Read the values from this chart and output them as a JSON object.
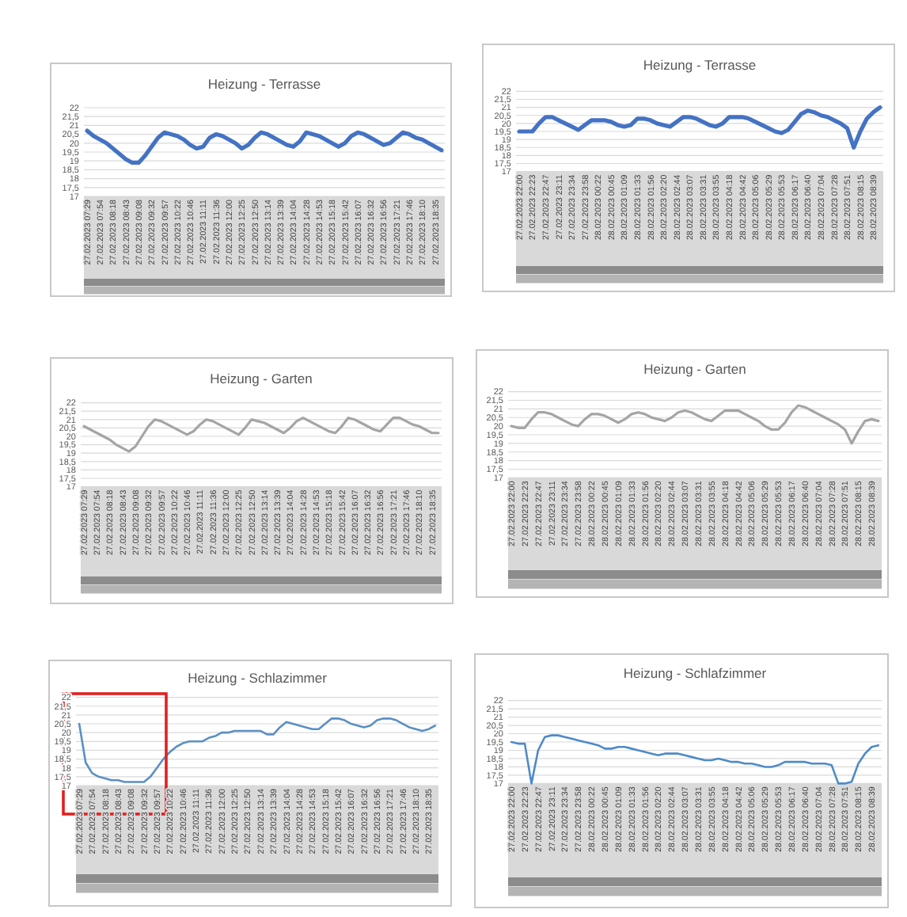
{
  "chart_data": [
    {
      "type": "line",
      "title": "Heizung - Terrasse",
      "categories": [
        "27.02.2023 07:29",
        null,
        "27.02.2023 07:54",
        null,
        "27.02.2023 08:18",
        null,
        "27.02.2023 08:43",
        null,
        "27.02.2023 09:08",
        null,
        "27.02.2023 09:32",
        null,
        "27.02.2023 09:57",
        null,
        "27.02.2023 10:22",
        null,
        "27.02.2023 10:46",
        null,
        "27.02.2023 11:11",
        null,
        "27.02.2023 11:36",
        null,
        "27.02.2023 12:00",
        null,
        "27.02.2023 12:25",
        null,
        "27.02.2023 12:50",
        null,
        "27.02.2023 13:14",
        null,
        "27.02.2023 13:39",
        null,
        "27.02.2023 14:04",
        null,
        "27.02.2023 14:28",
        null,
        "27.02.2023 14:53",
        null,
        "27.02.2023 15:18",
        null,
        "27.02.2023 15:42",
        null,
        "27.02.2023 16:07",
        null,
        "27.02.2023 16:32",
        null,
        "27.02.2023 16:56",
        null,
        "27.02.2023 17:21",
        null,
        "27.02.2023 17:46",
        null,
        "27.02.2023 18:10",
        null,
        "27.02.2023 18:35",
        null
      ],
      "series": [
        {
          "color": "#4472c4",
          "values": [
            20.7,
            20.4,
            20.2,
            20.0,
            19.7,
            19.4,
            19.1,
            18.9,
            18.9,
            19.3,
            19.8,
            20.3,
            20.6,
            20.5,
            20.4,
            20.2,
            19.9,
            19.7,
            19.8,
            20.3,
            20.5,
            20.4,
            20.2,
            20.0,
            19.7,
            19.9,
            20.3,
            20.6,
            20.5,
            20.3,
            20.1,
            19.9,
            19.8,
            20.1,
            20.6,
            20.5,
            20.4,
            20.2,
            20.0,
            19.8,
            20.0,
            20.4,
            20.6,
            20.5,
            20.3,
            20.1,
            19.9,
            20.0,
            20.3,
            20.6,
            20.5,
            20.3,
            20.2,
            20.0,
            19.8,
            19.6
          ]
        }
      ],
      "ylim": [
        17,
        22
      ],
      "yticks": [
        17,
        {
          "value": 17.5,
          "label": "17,5"
        },
        18,
        {
          "value": 18.5,
          "label": "18,5"
        },
        19,
        {
          "value": 19.5,
          "label": "19,5"
        },
        20,
        {
          "value": 20.5,
          "label": "20,5"
        },
        21,
        {
          "value": 21.5,
          "label": "21,5"
        },
        22
      ],
      "grid": "y"
    },
    {
      "type": "line",
      "title": "Heizung - Terrasse",
      "categories": [
        "27.02.2023 22:00",
        null,
        "27.02.2023 22:23",
        null,
        "27.02.2023 22:47",
        null,
        "27.02.2023 23:11",
        null,
        "27.02.2023 23:34",
        null,
        "27.02.2023 23:58",
        null,
        "28.02.2023 00:22",
        null,
        "28.02.2023 00:45",
        null,
        "28.02.2023 01:09",
        null,
        "28.02.2023 01:33",
        null,
        "28.02.2023 01:56",
        null,
        "28.02.2023 02:20",
        null,
        "28.02.2023 02:44",
        null,
        "28.02.2023 03:07",
        null,
        "28.02.2023 03:31",
        null,
        "28.02.2023 03:55",
        null,
        "28.02.2023 04:18",
        null,
        "28.02.2023 04:42",
        null,
        "28.02.2023 05:06",
        null,
        "28.02.2023 05:29",
        null,
        "28.02.2023 05:53",
        null,
        "28.02.2023 06:17",
        null,
        "28.02.2023 06:40",
        null,
        "28.02.2023 07:04",
        null,
        "28.02.2023 07:28",
        null,
        "28.02.2023 07:51",
        null,
        "28.02.2023 08:15",
        null,
        "28.02.2023 08:39",
        null
      ],
      "series": [
        {
          "color": "#4472c4",
          "values": [
            19.5,
            19.5,
            19.5,
            20.0,
            20.4,
            20.4,
            20.2,
            20.0,
            19.8,
            19.6,
            19.9,
            20.2,
            20.2,
            20.2,
            20.1,
            19.9,
            19.8,
            19.9,
            20.3,
            20.3,
            20.2,
            20.0,
            19.9,
            19.8,
            20.1,
            20.4,
            20.4,
            20.3,
            20.1,
            19.9,
            19.8,
            20.0,
            20.4,
            20.4,
            20.4,
            20.3,
            20.1,
            19.9,
            19.7,
            19.5,
            19.4,
            19.6,
            20.1,
            20.6,
            20.8,
            20.7,
            20.5,
            20.4,
            20.2,
            20.0,
            19.7,
            18.5,
            19.5,
            20.3,
            20.7,
            21.0
          ]
        }
      ],
      "ylim": [
        17,
        22
      ],
      "yticks": [
        17,
        {
          "value": 17.5,
          "label": "17,5"
        },
        18,
        {
          "value": 18.5,
          "label": "18,5"
        },
        19,
        {
          "value": 19.5,
          "label": "19,5"
        },
        20,
        {
          "value": 20.5,
          "label": "20,5"
        },
        21,
        {
          "value": 21.5,
          "label": "21,5"
        },
        22
      ],
      "grid": "y"
    },
    {
      "type": "line",
      "title": "Heizung - Garten",
      "categories": [
        "27.02.2023 07:29",
        null,
        "27.02.2023 07:54",
        null,
        "27.02.2023 08:18",
        null,
        "27.02.2023 08:43",
        null,
        "27.02.2023 09:08",
        null,
        "27.02.2023 09:32",
        null,
        "27.02.2023 09:57",
        null,
        "27.02.2023 10:22",
        null,
        "27.02.2023 10:46",
        null,
        "27.02.2023 11:11",
        null,
        "27.02.2023 11:36",
        null,
        "27.02.2023 12:00",
        null,
        "27.02.2023 12:25",
        null,
        "27.02.2023 12:50",
        null,
        "27.02.2023 13:14",
        null,
        "27.02.2023 13:39",
        null,
        "27.02.2023 14:04",
        null,
        "27.02.2023 14:28",
        null,
        "27.02.2023 14:53",
        null,
        "27.02.2023 15:18",
        null,
        "27.02.2023 15:42",
        null,
        "27.02.2023 16:07",
        null,
        "27.02.2023 16:32",
        null,
        "27.02.2023 16:56",
        null,
        "27.02.2023 17:21",
        null,
        "27.02.2023 17:46",
        null,
        "27.02.2023 18:10",
        null,
        "27.02.2023 18:35",
        null
      ],
      "series": [
        {
          "color": "#a5a5a5",
          "values": [
            20.6,
            20.4,
            20.2,
            20.0,
            19.8,
            19.5,
            19.3,
            19.1,
            19.4,
            20.0,
            20.6,
            21.0,
            20.9,
            20.7,
            20.5,
            20.3,
            20.1,
            20.3,
            20.7,
            21.0,
            20.9,
            20.7,
            20.5,
            20.3,
            20.1,
            20.5,
            21.0,
            20.9,
            20.8,
            20.6,
            20.4,
            20.2,
            20.5,
            20.9,
            21.1,
            20.9,
            20.7,
            20.5,
            20.3,
            20.2,
            20.6,
            21.1,
            21.0,
            20.8,
            20.6,
            20.4,
            20.3,
            20.7,
            21.1,
            21.1,
            20.9,
            20.7,
            20.6,
            20.4,
            20.2,
            20.2
          ]
        }
      ],
      "ylim": [
        17,
        22
      ],
      "yticks": [
        17,
        {
          "value": 17.5,
          "label": "17,5"
        },
        18,
        {
          "value": 18.5,
          "label": "18,5"
        },
        19,
        {
          "value": 19.5,
          "label": "19,5"
        },
        20,
        {
          "value": 20.5,
          "label": "20,5"
        },
        21,
        {
          "value": 21.5,
          "label": "21,5"
        },
        22
      ],
      "grid": "y"
    },
    {
      "type": "line",
      "title": "Heizung - Garten",
      "categories": [
        "27.02.2023 22:00",
        null,
        "27.02.2023 22:23",
        null,
        "27.02.2023 22:47",
        null,
        "27.02.2023 23:11",
        null,
        "27.02.2023 23:34",
        null,
        "27.02.2023 23:58",
        null,
        "28.02.2023 00:22",
        null,
        "28.02.2023 00:45",
        null,
        "28.02.2023 01:09",
        null,
        "28.02.2023 01:33",
        null,
        "28.02.2023 01:56",
        null,
        "28.02.2023 02:20",
        null,
        "28.02.2023 02:44",
        null,
        "28.02.2023 03:07",
        null,
        "28.02.2023 03:31",
        null,
        "28.02.2023 03:55",
        null,
        "28.02.2023 04:18",
        null,
        "28.02.2023 04:42",
        null,
        "28.02.2023 05:06",
        null,
        "28.02.2023 05:29",
        null,
        "28.02.2023 05:53",
        null,
        "28.02.2023 06:17",
        null,
        "28.02.2023 06:40",
        null,
        "28.02.2023 07:04",
        null,
        "28.02.2023 07:28",
        null,
        "28.02.2023 07:51",
        null,
        "28.02.2023 08:15",
        null,
        "28.02.2023 08:39",
        null
      ],
      "series": [
        {
          "color": "#a5a5a5",
          "values": [
            20.0,
            19.9,
            19.9,
            20.4,
            20.8,
            20.8,
            20.7,
            20.5,
            20.3,
            20.1,
            20.0,
            20.4,
            20.7,
            20.7,
            20.6,
            20.4,
            20.2,
            20.4,
            20.7,
            20.8,
            20.7,
            20.5,
            20.4,
            20.3,
            20.5,
            20.8,
            20.9,
            20.8,
            20.6,
            20.4,
            20.3,
            20.6,
            20.9,
            20.9,
            20.9,
            20.7,
            20.5,
            20.3,
            20.0,
            19.8,
            19.8,
            20.2,
            20.8,
            21.2,
            21.1,
            20.9,
            20.7,
            20.5,
            20.3,
            20.1,
            19.8,
            19.0,
            19.7,
            20.3,
            20.4,
            20.3
          ]
        }
      ],
      "ylim": [
        17,
        22
      ],
      "yticks": [
        17,
        {
          "value": 17.5,
          "label": "17,5"
        },
        18,
        {
          "value": 18.5,
          "label": "18,5"
        },
        19,
        {
          "value": 19.5,
          "label": "19,5"
        },
        20,
        {
          "value": 20.5,
          "label": "20,5"
        },
        21,
        {
          "value": 21.5,
          "label": "21,5"
        },
        22
      ],
      "grid": "y"
    },
    {
      "type": "line",
      "title": "Heizung - Schlazimmer",
      "categories": [
        "27.02.2023 07:29",
        null,
        "27.02.2023 07:54",
        null,
        "27.02.2023 08:18",
        null,
        "27.02.2023 08:43",
        null,
        "27.02.2023 09:08",
        null,
        "27.02.2023 09:32",
        null,
        "27.02.2023 09:57",
        null,
        "27.02.2023 10:22",
        null,
        "27.02.2023 10:46",
        null,
        "27.02.2023 11:11",
        null,
        "27.02.2023 11:36",
        null,
        "27.02.2023 12:00",
        null,
        "27.02.2023 12:25",
        null,
        "27.02.2023 12:50",
        null,
        "27.02.2023 13:14",
        null,
        "27.02.2023 13:39",
        null,
        "27.02.2023 14:04",
        null,
        "27.02.2023 14:28",
        null,
        "27.02.2023 14:53",
        null,
        "27.02.2023 15:18",
        null,
        "27.02.2023 15:42",
        null,
        "27.02.2023 16:07",
        null,
        "27.02.2023 16:32",
        null,
        "27.02.2023 16:56",
        null,
        "27.02.2023 17:21",
        null,
        "27.02.2023 17:46",
        null,
        "27.02.2023 18:10",
        null,
        "27.02.2023 18:35",
        null
      ],
      "series": [
        {
          "color": "#5b8fc4",
          "values": [
            20.5,
            18.3,
            17.7,
            17.5,
            17.4,
            17.3,
            17.3,
            17.2,
            17.2,
            17.2,
            17.2,
            17.5,
            18.0,
            18.5,
            18.9,
            19.2,
            19.4,
            19.5,
            19.5,
            19.5,
            19.7,
            19.8,
            20.0,
            20.0,
            20.1,
            20.1,
            20.1,
            20.1,
            20.1,
            19.9,
            19.9,
            20.3,
            20.6,
            20.5,
            20.4,
            20.3,
            20.2,
            20.2,
            20.5,
            20.8,
            20.8,
            20.7,
            20.5,
            20.4,
            20.3,
            20.4,
            20.7,
            20.8,
            20.8,
            20.7,
            20.5,
            20.3,
            20.2,
            20.1,
            20.2,
            20.4
          ]
        }
      ],
      "ylim": [
        17,
        22
      ],
      "yticks": [
        17,
        {
          "value": 17.5,
          "label": "17,5"
        },
        18,
        {
          "value": 18.5,
          "label": "18,5"
        },
        19,
        {
          "value": 19.5,
          "label": "19,5"
        },
        20,
        {
          "value": 20.5,
          "label": "20,5"
        },
        21,
        {
          "value": 21.5,
          "label": "21,5"
        },
        22
      ],
      "grid": "y"
    },
    {
      "type": "line",
      "title": "Heizung - Schlafzimmer",
      "categories": [
        "27.02.2023 22:00",
        null,
        "27.02.2023 22:23",
        null,
        "27.02.2023 22:47",
        null,
        "27.02.2023 23:11",
        null,
        "27.02.2023 23:34",
        null,
        "27.02.2023 23:58",
        null,
        "28.02.2023 00:22",
        null,
        "28.02.2023 00:45",
        null,
        "28.02.2023 01:09",
        null,
        "28.02.2023 01:33",
        null,
        "28.02.2023 01:56",
        null,
        "28.02.2023 02:20",
        null,
        "28.02.2023 02:44",
        null,
        "28.02.2023 03:07",
        null,
        "28.02.2023 03:31",
        null,
        "28.02.2023 03:55",
        null,
        "28.02.2023 04:18",
        null,
        "28.02.2023 04:42",
        null,
        "28.02.2023 05:06",
        null,
        "28.02.2023 05:29",
        null,
        "28.02.2023 05:53",
        null,
        "28.02.2023 06:17",
        null,
        "28.02.2023 06:40",
        null,
        "28.02.2023 07:04",
        null,
        "28.02.2023 07:28",
        null,
        "28.02.2023 07:51",
        null,
        "28.02.2023 08:15",
        null,
        "28.02.2023 08:39",
        null
      ],
      "series": [
        {
          "color": "#4e8ac8",
          "values": [
            19.5,
            19.4,
            19.4,
            17.0,
            19.0,
            19.8,
            19.9,
            19.9,
            19.8,
            19.7,
            19.6,
            19.5,
            19.4,
            19.3,
            19.1,
            19.1,
            19.2,
            19.2,
            19.1,
            19.0,
            18.9,
            18.8,
            18.7,
            18.8,
            18.8,
            18.8,
            18.7,
            18.6,
            18.5,
            18.4,
            18.4,
            18.5,
            18.4,
            18.3,
            18.3,
            18.2,
            18.2,
            18.1,
            18.0,
            18.0,
            18.1,
            18.3,
            18.3,
            18.3,
            18.3,
            18.2,
            18.2,
            18.2,
            18.1,
            17.0,
            17.0,
            17.1,
            18.2,
            18.8,
            19.2,
            19.3
          ]
        }
      ],
      "ylim": [
        17,
        22
      ],
      "yticks": [
        17,
        {
          "value": 17.5,
          "label": "17,5"
        },
        18,
        {
          "value": 18.5,
          "label": "18,5"
        },
        19,
        {
          "value": 19.5,
          "label": "19,5"
        },
        20,
        {
          "value": 20.5,
          "label": "20,5"
        },
        21,
        {
          "value": 21.5,
          "label": "21,5"
        },
        22
      ],
      "grid": "y"
    }
  ]
}
